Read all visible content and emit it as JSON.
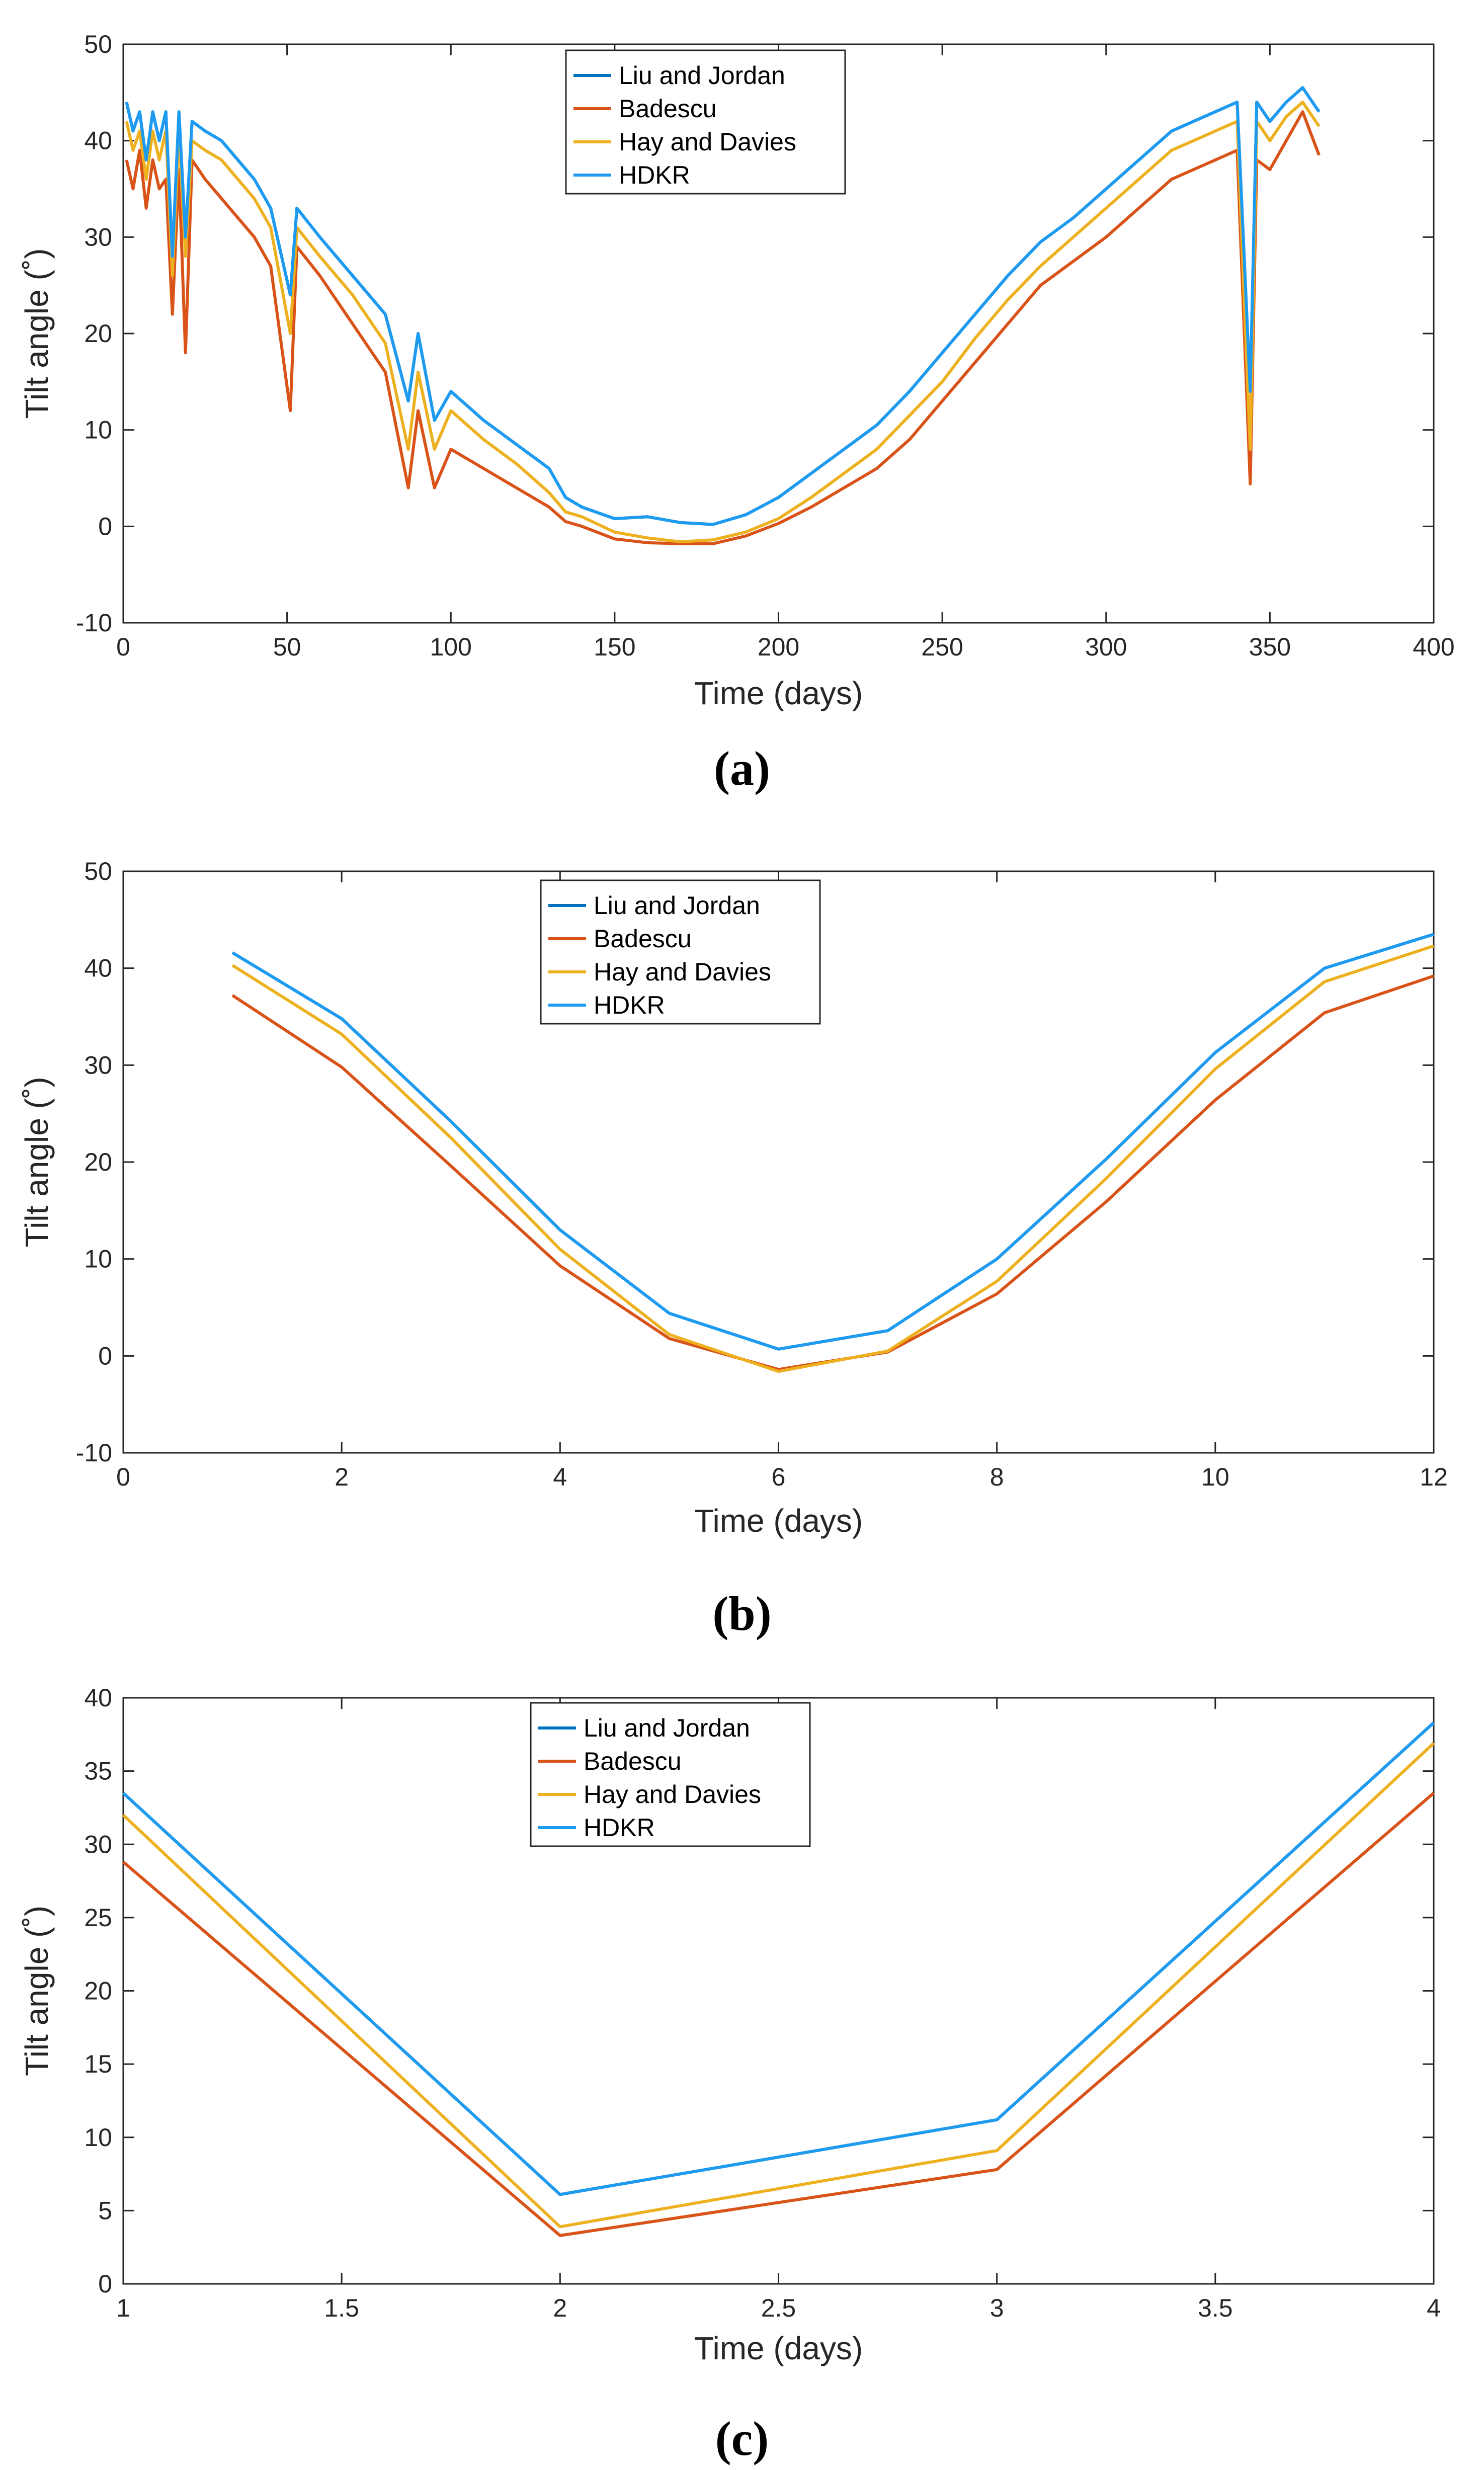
{
  "chart_data": [
    {
      "type": "line",
      "panel": "a",
      "caption": "(a)",
      "xlabel": "Time (days)",
      "ylabel": "Tilt angle (˚)",
      "xlim": [
        0,
        400
      ],
      "ylim": [
        -10,
        50
      ],
      "xticks": [
        0,
        50,
        100,
        150,
        200,
        250,
        300,
        350,
        400
      ],
      "yticks": [
        -10,
        0,
        10,
        20,
        30,
        40,
        50
      ],
      "grid": false,
      "legend": "top-center",
      "series": [
        {
          "name": "Liu and Jordan",
          "color": "#0072BD",
          "x": [
            1,
            3,
            5,
            7,
            9,
            11,
            13,
            15,
            17,
            19,
            21,
            25,
            30,
            35,
            40,
            45,
            51,
            53,
            60,
            70,
            80,
            87,
            90,
            95,
            100,
            110,
            120,
            130,
            135,
            140,
            150,
            160,
            170,
            180,
            190,
            200,
            210,
            220,
            230,
            240,
            250,
            260,
            270,
            280,
            290,
            300,
            310,
            320,
            330,
            340,
            344,
            346,
            350,
            355,
            360,
            365
          ],
          "y": [
            44,
            41,
            43,
            38,
            43,
            40,
            43,
            28,
            43,
            30,
            42,
            41,
            40,
            38,
            36,
            33,
            24,
            33,
            30,
            26,
            22,
            13,
            20,
            11,
            14,
            11,
            8.5,
            6,
            3,
            2,
            0.8,
            1,
            0.4,
            0.2,
            1.2,
            3,
            5.5,
            8,
            10.5,
            14,
            18,
            22,
            26,
            29.5,
            32,
            35,
            38,
            41,
            42.5,
            44,
            14,
            44,
            42,
            44,
            45.5,
            43
          ]
        },
        {
          "name": "Badescu",
          "color": "#D95319",
          "x": [
            1,
            3,
            5,
            7,
            9,
            11,
            13,
            15,
            17,
            19,
            21,
            25,
            30,
            35,
            40,
            45,
            51,
            53,
            60,
            70,
            80,
            87,
            90,
            95,
            100,
            110,
            120,
            130,
            135,
            140,
            150,
            160,
            170,
            180,
            190,
            200,
            210,
            220,
            230,
            240,
            250,
            260,
            270,
            280,
            290,
            300,
            310,
            320,
            330,
            340,
            344,
            346,
            350,
            355,
            360,
            365
          ],
          "y": [
            38,
            35,
            39,
            33,
            38,
            35,
            36,
            22,
            37,
            18,
            38,
            36,
            34,
            32,
            30,
            27,
            12,
            29,
            26,
            21,
            16,
            4,
            12,
            4,
            8,
            6,
            4,
            2,
            0.5,
            0,
            -1.3,
            -1.7,
            -1.8,
            -1.8,
            -1,
            0.3,
            2,
            4,
            6,
            9,
            13,
            17,
            21,
            25,
            27.5,
            30,
            33,
            36,
            37.5,
            39,
            4.4,
            38,
            37,
            40,
            43,
            38.5
          ]
        },
        {
          "name": "Hay and Davies",
          "color": "#EDB120",
          "x": [
            1,
            3,
            5,
            7,
            9,
            11,
            13,
            15,
            17,
            19,
            21,
            25,
            30,
            35,
            40,
            45,
            51,
            53,
            60,
            70,
            80,
            87,
            90,
            95,
            100,
            110,
            120,
            130,
            135,
            140,
            150,
            160,
            170,
            180,
            190,
            200,
            210,
            220,
            230,
            240,
            250,
            260,
            270,
            280,
            290,
            300,
            310,
            320,
            330,
            340,
            344,
            346,
            350,
            355,
            360,
            365
          ],
          "y": [
            42,
            39,
            41,
            36,
            41,
            38,
            41,
            26,
            41,
            28,
            40,
            39,
            38,
            36,
            34,
            31,
            20,
            31,
            28,
            24,
            19,
            8,
            16,
            8,
            12,
            9,
            6.5,
            3.5,
            1.5,
            1,
            -0.6,
            -1.2,
            -1.6,
            -1.4,
            -0.6,
            0.8,
            3,
            5.5,
            8,
            11.5,
            15,
            19.5,
            23.5,
            27,
            30,
            33,
            36,
            39,
            40.5,
            42,
            8,
            42,
            40,
            42.5,
            44,
            41.5
          ]
        },
        {
          "name": "HDKR",
          "color": "#1E9BF0",
          "x": [
            1,
            3,
            5,
            7,
            9,
            11,
            13,
            15,
            17,
            19,
            21,
            25,
            30,
            35,
            40,
            45,
            51,
            53,
            60,
            70,
            80,
            87,
            90,
            95,
            100,
            110,
            120,
            130,
            135,
            140,
            150,
            160,
            170,
            180,
            190,
            200,
            210,
            220,
            230,
            240,
            250,
            260,
            270,
            280,
            290,
            300,
            310,
            320,
            330,
            340,
            344,
            346,
            350,
            355,
            360,
            365
          ],
          "y": [
            44,
            41,
            43,
            38,
            43,
            40,
            43,
            28,
            43,
            30,
            42,
            41,
            40,
            38,
            36,
            33,
            24,
            33,
            30,
            26,
            22,
            13,
            20,
            11,
            14,
            11,
            8.5,
            6,
            3,
            2,
            0.8,
            1,
            0.4,
            0.2,
            1.2,
            3,
            5.5,
            8,
            10.5,
            14,
            18,
            22,
            26,
            29.5,
            32,
            35,
            38,
            41,
            42.5,
            44,
            14,
            44,
            42,
            44,
            45.5,
            43
          ]
        }
      ]
    },
    {
      "type": "line",
      "panel": "b",
      "caption": "(b)",
      "xlabel": "Time (days)",
      "ylabel": "Tilt angle (˚)",
      "xlim": [
        0,
        12
      ],
      "ylim": [
        -10,
        50
      ],
      "xticks": [
        0,
        2,
        4,
        6,
        8,
        10,
        12
      ],
      "yticks": [
        -10,
        0,
        10,
        20,
        30,
        40,
        50
      ],
      "grid": false,
      "legend": "top-center",
      "series": [
        {
          "name": "Liu and Jordan",
          "color": "#0072BD",
          "x": [
            1,
            2,
            3,
            4,
            5,
            6,
            7,
            8,
            9,
            10,
            11,
            12
          ],
          "y": [
            41.6,
            34.8,
            24.2,
            13.0,
            4.4,
            0.7,
            2.6,
            10.0,
            20.3,
            31.3,
            40.0,
            43.5
          ]
        },
        {
          "name": "Badescu",
          "color": "#D95319",
          "x": [
            1,
            2,
            3,
            4,
            5,
            6,
            7,
            8,
            9,
            10,
            11,
            12
          ],
          "y": [
            37.2,
            29.8,
            19.6,
            9.3,
            1.8,
            -1.4,
            0.4,
            6.4,
            15.9,
            26.4,
            35.4,
            39.2
          ]
        },
        {
          "name": "Hay and Davies",
          "color": "#EDB120",
          "x": [
            1,
            2,
            3,
            4,
            5,
            6,
            7,
            8,
            9,
            10,
            11,
            12
          ],
          "y": [
            40.3,
            33.2,
            22.5,
            11.0,
            2.2,
            -1.6,
            0.5,
            7.7,
            18.3,
            29.6,
            38.6,
            42.3
          ]
        },
        {
          "name": "HDKR",
          "color": "#1E9BF0",
          "x": [
            1,
            2,
            3,
            4,
            5,
            6,
            7,
            8,
            9,
            10,
            11,
            12
          ],
          "y": [
            41.6,
            34.8,
            24.2,
            13.0,
            4.4,
            0.7,
            2.6,
            10.0,
            20.3,
            31.3,
            40.0,
            43.5
          ]
        }
      ]
    },
    {
      "type": "line",
      "panel": "c",
      "caption": "(c)",
      "xlabel": "Time (days)",
      "ylabel": "Tilt angle (˚)",
      "xlim": [
        1,
        4
      ],
      "ylim": [
        0,
        40
      ],
      "xticks": [
        1,
        1.5,
        2,
        2.5,
        3,
        3.5,
        4
      ],
      "yticks": [
        0,
        5,
        10,
        15,
        20,
        25,
        30,
        35,
        40
      ],
      "grid": false,
      "legend": "top-center",
      "series": [
        {
          "name": "Liu and Jordan",
          "color": "#0072BD",
          "x": [
            1,
            2,
            3,
            4
          ],
          "y": [
            33.5,
            6.1,
            11.2,
            38.3
          ]
        },
        {
          "name": "Badescu",
          "color": "#D95319",
          "x": [
            1,
            2,
            3,
            4
          ],
          "y": [
            28.8,
            3.3,
            7.8,
            33.5
          ]
        },
        {
          "name": "Hay and Davies",
          "color": "#EDB120",
          "x": [
            1,
            2,
            3,
            4
          ],
          "y": [
            32.0,
            3.9,
            9.1,
            36.9
          ]
        },
        {
          "name": "HDKR",
          "color": "#1E9BF0",
          "x": [
            1,
            2,
            3,
            4
          ],
          "y": [
            33.5,
            6.1,
            11.2,
            38.3
          ]
        }
      ]
    }
  ]
}
